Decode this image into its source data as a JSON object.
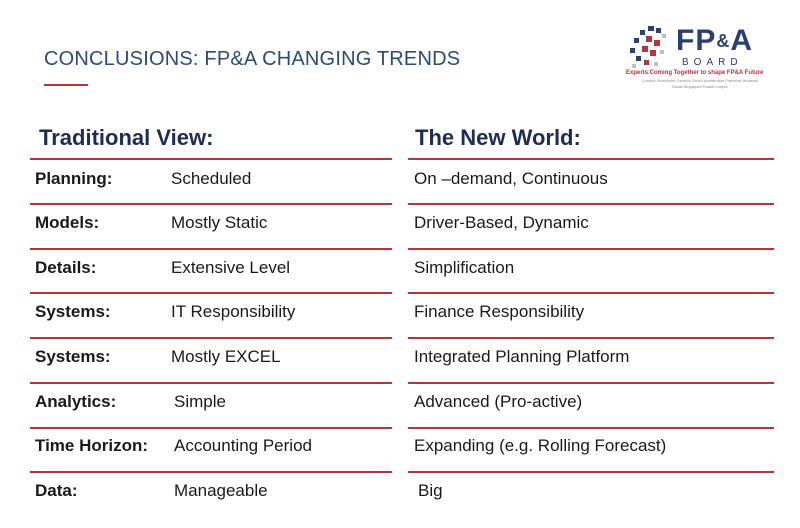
{
  "title": "CONCLUSIONS: FP&A CHANGING TRENDS",
  "logo": {
    "name_main": "FP",
    "name_amp": "&",
    "name_end": "A",
    "sub": "BOARD",
    "tagline": "Experts Coming Together to shape FP&A Future",
    "cities": "London Stockholm Geneva Zurich Amsterdam Frankfurt Brussels Dubai Singapore Kuala Lumpur"
  },
  "headings": {
    "traditional": "Traditional View:",
    "new_world": "The New  World:"
  },
  "rows": [
    {
      "label": "Planning:",
      "traditional": "Scheduled",
      "new": "On –demand,  Continuous"
    },
    {
      "label": "Models:",
      "traditional": "Mostly Static",
      "new": "Driver-Based, Dynamic"
    },
    {
      "label": "Details:",
      "traditional": "Extensive Level",
      "new": "Simplification"
    },
    {
      "label": "Systems:",
      "traditional": "IT Responsibility",
      "new": "Finance Responsibility"
    },
    {
      "label": "Systems:",
      "traditional": "Mostly EXCEL",
      "new": "Integrated Planning Platform"
    },
    {
      "label": "Analytics:",
      "traditional": "Simple",
      "new": "Advanced (Pro-active)"
    },
    {
      "label": "Time Horizon:",
      "traditional": "Accounting Period",
      "new": "Expanding (e.g. Rolling Forecast)"
    },
    {
      "label": "Data:",
      "traditional": "Manageable",
      "new": "Big"
    }
  ],
  "colors": {
    "accent_red": "#b3363f",
    "title_blue": "#2e4a78",
    "heading_navy": "#1f2d55"
  }
}
